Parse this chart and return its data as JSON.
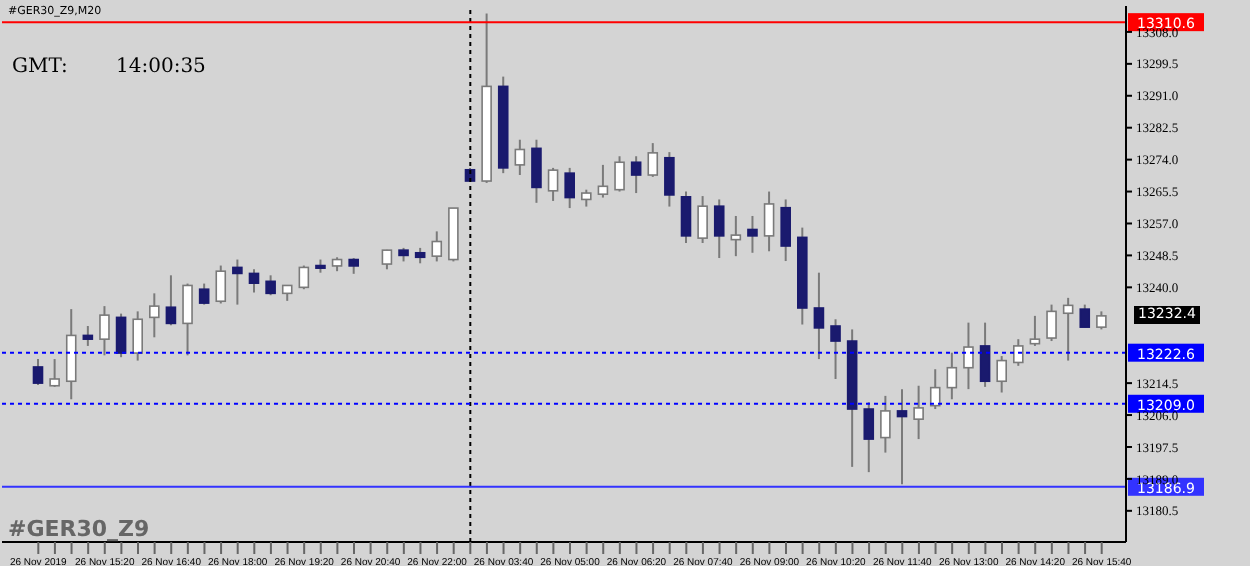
{
  "chart_data": {
    "type": "candlestick",
    "title": "#GER30_Z9,M20",
    "annotations": [
      "GMT:",
      "14:00:35",
      "#GER30_Z9",
      "13232.4"
    ],
    "categories": [
      "26 Nov 2019",
      null,
      null,
      null,
      "26 Nov 15:20",
      null,
      null,
      null,
      "26 Nov 16:40",
      null,
      null,
      null,
      "26 Nov 18:00",
      null,
      null,
      null,
      "26 Nov 19:20",
      null,
      null,
      null,
      "26 Nov 20:40",
      null,
      null,
      null,
      "26 Nov 22:00",
      null,
      null,
      null,
      "26 Nov 03:40",
      null,
      null,
      null,
      "26 Nov 05:00",
      null,
      null,
      null,
      "26 Nov 06:20",
      null,
      null,
      null,
      "26 Nov 07:40",
      null,
      null,
      null,
      "26 Nov 09:00",
      null,
      null,
      null,
      "26 Nov 10:20",
      null,
      null,
      null,
      "26 Nov 11:40",
      null,
      null,
      null,
      "26 Nov 13:00",
      null,
      null,
      null,
      "26 Nov 14:20",
      null,
      null,
      null,
      "26 Nov 15:40"
    ],
    "ohlc": [
      [
        13218.8,
        13220.9,
        13214.0,
        13214.5
      ],
      [
        13213.8,
        13220.9,
        13213.5,
        13215.6
      ],
      [
        13215.0,
        13234.2,
        13210.2,
        13227.2
      ],
      [
        13227.2,
        13229.7,
        13224.4,
        13226.2
      ],
      [
        13226.2,
        13235.0,
        13221.9,
        13232.6
      ],
      [
        13232.0,
        13233.0,
        13221.4,
        13222.5
      ],
      [
        13222.5,
        13233.6,
        13220.5,
        13231.5
      ],
      [
        13232.0,
        13238.4,
        13226.7,
        13235.0
      ],
      [
        13234.7,
        13243.2,
        13229.9,
        13230.4
      ],
      [
        13230.4,
        13241.0,
        13221.9,
        13240.5
      ],
      [
        13239.5,
        13241.0,
        13235.4,
        13235.8
      ],
      [
        13236.3,
        13245.8,
        13235.7,
        13244.3
      ],
      [
        13245.3,
        13247.4,
        13235.4,
        13243.7
      ],
      [
        13243.7,
        13244.8,
        13238.6,
        13241.1
      ],
      [
        13241.6,
        13243.2,
        13237.9,
        13238.4
      ],
      [
        13238.4,
        13240.5,
        13236.4,
        13240.5
      ],
      [
        13240.0,
        13245.8,
        13239.5,
        13245.3
      ],
      [
        13245.8,
        13247.4,
        13243.9,
        13245.1
      ],
      [
        13245.7,
        13248.0,
        13244.3,
        13247.4
      ],
      [
        13247.4,
        13247.8,
        13243.6,
        13245.7
      ],
      null,
      [
        13246.2,
        13250.0,
        13244.8,
        13249.9
      ],
      [
        13249.9,
        13250.5,
        13246.9,
        13248.5
      ],
      [
        13249.2,
        13250.5,
        13246.4,
        13248.0
      ],
      [
        13248.3,
        13254.9,
        13246.9,
        13252.2
      ],
      [
        13247.4,
        13261.1,
        13246.9,
        13261.1
      ],
      [
        13271.3,
        13271.8,
        13268.1,
        13268.3
      ],
      [
        13268.3,
        13312.9,
        13267.8,
        13293.5
      ],
      [
        13293.5,
        13296.1,
        13270.4,
        13271.8
      ],
      [
        13272.6,
        13279.3,
        13269.9,
        13276.7
      ],
      [
        13277.0,
        13279.3,
        13262.5,
        13266.6
      ],
      [
        13265.7,
        13271.8,
        13263.0,
        13271.2
      ],
      [
        13270.4,
        13271.8,
        13261.1,
        13263.9
      ],
      [
        13263.4,
        13266.0,
        13261.5,
        13265.1
      ],
      [
        13264.8,
        13272.6,
        13263.9,
        13266.9
      ],
      [
        13266.0,
        13274.9,
        13265.5,
        13273.3
      ],
      [
        13273.3,
        13274.9,
        13265.1,
        13269.9
      ],
      [
        13269.9,
        13278.4,
        13269.4,
        13275.8
      ],
      [
        13274.5,
        13276.0,
        13261.5,
        13264.6
      ],
      [
        13264.1,
        13265.5,
        13251.8,
        13253.7
      ],
      [
        13253.1,
        13264.3,
        13251.8,
        13261.6
      ],
      [
        13261.6,
        13263.4,
        13247.8,
        13253.7
      ],
      [
        13252.7,
        13259.0,
        13248.3,
        13253.9
      ],
      [
        13255.4,
        13259.0,
        13249.2,
        13253.7
      ],
      [
        13253.7,
        13265.5,
        13249.6,
        13262.2
      ],
      [
        13261.2,
        13263.4,
        13247.0,
        13251.0
      ],
      [
        13253.3,
        13255.9,
        13230.1,
        13234.5
      ],
      [
        13234.5,
        13243.9,
        13220.9,
        13229.2
      ],
      [
        13229.7,
        13231.5,
        13215.6,
        13225.7
      ],
      [
        13225.7,
        13228.8,
        13192.2,
        13207.6
      ],
      [
        13207.6,
        13209.4,
        13190.8,
        13199.6
      ],
      [
        13200.0,
        13211.1,
        13196.0,
        13207.1
      ],
      [
        13207.1,
        13212.9,
        13187.6,
        13205.6
      ],
      [
        13204.9,
        13213.8,
        13199.6,
        13207.9
      ],
      [
        13208.5,
        13218.2,
        13207.6,
        13213.3
      ],
      [
        13213.3,
        13222.6,
        13210.2,
        13218.6
      ],
      [
        13218.6,
        13230.6,
        13212.9,
        13224.1
      ],
      [
        13224.4,
        13230.6,
        13213.5,
        13215.0
      ],
      [
        13215.0,
        13221.7,
        13212.0,
        13220.5
      ],
      [
        13220.0,
        13226.2,
        13219.1,
        13224.4
      ],
      [
        13225.0,
        13232.4,
        13224.4,
        13226.2
      ],
      [
        13226.5,
        13235.4,
        13225.7,
        13233.6
      ],
      [
        13233.1,
        13237.2,
        13220.5,
        13235.2
      ],
      [
        13234.2,
        13235.4,
        13229.4,
        13229.4
      ],
      [
        13229.4,
        13233.6,
        13228.8,
        13232.4
      ]
    ],
    "ylim": [
      13172.2,
      13314.9
    ],
    "yticks": [
      {
        "value": 13308,
        "label": "13308.0"
      },
      {
        "value": 13299.5,
        "label": "13299.5"
      },
      {
        "value": 13291,
        "label": "13291.0"
      },
      {
        "value": 13282.5,
        "label": "13282.5"
      },
      {
        "value": 13274,
        "label": "13274.0"
      },
      {
        "value": 13265.5,
        "label": "13265.5"
      },
      {
        "value": 13257,
        "label": "13257.0"
      },
      {
        "value": 13248.5,
        "label": "13248.5"
      },
      {
        "value": 13240,
        "label": "13240.0"
      },
      {
        "value": 13214.5,
        "label": "13214.5"
      },
      {
        "value": 13206,
        "label": "13206.0"
      },
      {
        "value": 13197.5,
        "label": "13197.5"
      },
      {
        "value": 13189,
        "label": "13189.0"
      },
      {
        "value": 13180.5,
        "label": "13180.5"
      }
    ],
    "ref_lines": [
      {
        "axis": "y",
        "value": 13310.6,
        "label": "13310.6",
        "color": "#ff0000",
        "line_style": "solid"
      },
      {
        "axis": "y",
        "value": 13222.6,
        "label": "13222.6",
        "color": "#0000ff",
        "line_style": "dotted"
      },
      {
        "axis": "y",
        "value": 13209.0,
        "label": "13209.0",
        "color": "#0000ff",
        "line_style": "dotted"
      },
      {
        "axis": "y",
        "value": 13186.9,
        "label": "13186.9",
        "color": "#3333ff",
        "line_style": "solid"
      }
    ]
  }
}
